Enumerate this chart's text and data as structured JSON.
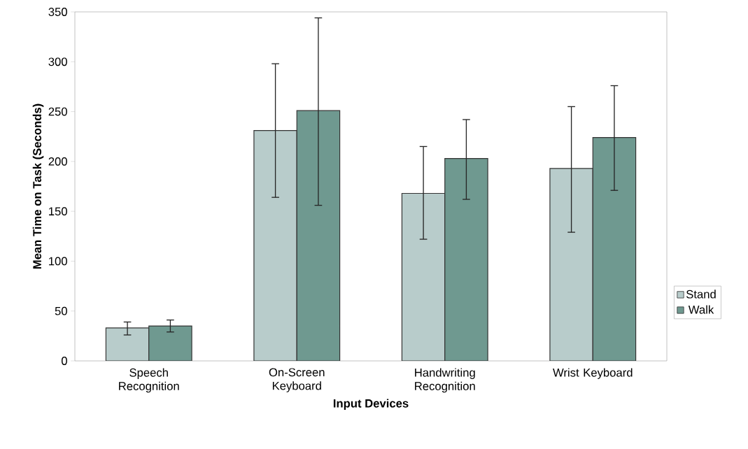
{
  "chart_data": {
    "type": "bar",
    "xlabel": "Input Devices",
    "ylabel": "Mean Time on Task (Seconds)",
    "categories": [
      "Speech Recognition",
      "On-Screen Keyboard",
      "Handwriting Recognition",
      "Wrist Keyboard"
    ],
    "series": [
      {
        "name": "Stand",
        "color": "#b8cccb",
        "values": [
          33,
          231,
          168,
          193
        ],
        "errors": [
          [
            26,
            39
          ],
          [
            164,
            298
          ],
          [
            122,
            215
          ],
          [
            129,
            255
          ]
        ]
      },
      {
        "name": "Walk",
        "color": "#6f9990",
        "values": [
          35,
          251,
          203,
          224
        ],
        "errors": [
          [
            29,
            41
          ],
          [
            156,
            344
          ],
          [
            162,
            242
          ],
          [
            171,
            276
          ]
        ]
      }
    ],
    "ylim": [
      0,
      350
    ],
    "yticks": [
      0,
      50,
      100,
      150,
      200,
      250,
      300,
      350
    ],
    "legend": "right"
  }
}
